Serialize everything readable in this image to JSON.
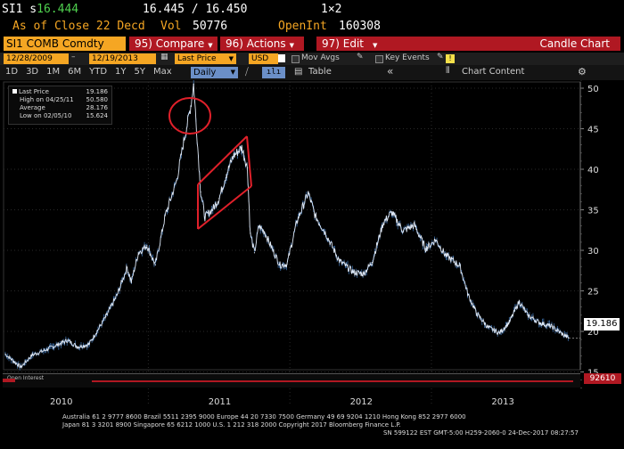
{
  "header": {
    "ticker": "SI1 s",
    "last": "16.444",
    "bidask": "16.445 / 16.450",
    "layout": "1×2",
    "asof": "As of Close 22 Decd",
    "vol_label": "Vol",
    "vol": "50776",
    "openint_label": "OpenInt",
    "openint": "160308"
  },
  "toolbar": {
    "security": "SI1 COMB Comdty",
    "compare": "95) Compare",
    "actions": "96) Actions",
    "edit": "97) Edit",
    "title": "Candle Chart"
  },
  "settings": {
    "start_date": "12/28/2009",
    "end_date": "12/19/2013",
    "field": "Last Price",
    "currency": "USD",
    "mov_avgs": "Mov Avgs",
    "key_events": "Key Events"
  },
  "periods": {
    "items": [
      "1D",
      "3D",
      "1M",
      "6M",
      "YTD",
      "1Y",
      "5Y",
      "Max"
    ],
    "frequency": "Daily",
    "table": "Table",
    "chart_content": "Chart Content"
  },
  "legend": {
    "last_label": "Last Price",
    "last_value": "19.186",
    "high_label": "High on 04/25/11",
    "high_value": "50.580",
    "avg_label": "Average",
    "avg_value": "28.176",
    "low_label": "Low on 02/05/10",
    "low_value": "15.624"
  },
  "price_tag": "19.186",
  "oi_tag": "92610",
  "oi_label": "Open Interest",
  "chart_data": {
    "type": "line",
    "ylim": [
      12,
      53
    ],
    "yticks": [
      "15",
      "20",
      "25",
      "30",
      "35",
      "40",
      "45",
      "50"
    ],
    "xticks": [
      "2010",
      "2011",
      "2012",
      "2013"
    ],
    "series": [
      {
        "values": [
          [
            2009.99,
            17.2
          ],
          [
            2010.05,
            16.3
          ],
          [
            2010.1,
            15.6
          ],
          [
            2010.18,
            17.1
          ],
          [
            2010.26,
            17.6
          ],
          [
            2010.35,
            18.3
          ],
          [
            2010.43,
            18.9
          ],
          [
            2010.5,
            18.1
          ],
          [
            2010.58,
            18.4
          ],
          [
            2010.64,
            20.1
          ],
          [
            2010.7,
            21.8
          ],
          [
            2010.78,
            24.5
          ],
          [
            2010.85,
            27.9
          ],
          [
            2010.88,
            26.1
          ],
          [
            2010.93,
            29.7
          ],
          [
            2010.99,
            30.6
          ],
          [
            2011.05,
            28.2
          ],
          [
            2011.12,
            34.3
          ],
          [
            2011.2,
            38.6
          ],
          [
            2011.25,
            43.4
          ],
          [
            2011.3,
            47.8
          ],
          [
            2011.32,
            50.5
          ],
          [
            2011.37,
            37.2
          ],
          [
            2011.4,
            34.1
          ],
          [
            2011.46,
            35.2
          ],
          [
            2011.5,
            36.4
          ],
          [
            2011.55,
            39.3
          ],
          [
            2011.6,
            41.6
          ],
          [
            2011.66,
            42.7
          ],
          [
            2011.7,
            40.2
          ],
          [
            2011.72,
            32.1
          ],
          [
            2011.75,
            29.7
          ],
          [
            2011.78,
            33.0
          ],
          [
            2011.82,
            32.3
          ],
          [
            2011.88,
            30.0
          ],
          [
            2011.93,
            28.2
          ],
          [
            2011.98,
            28.3
          ],
          [
            2012.05,
            33.6
          ],
          [
            2012.13,
            37.1
          ],
          [
            2012.18,
            34.2
          ],
          [
            2012.25,
            32.2
          ],
          [
            2012.35,
            28.7
          ],
          [
            2012.45,
            27.3
          ],
          [
            2012.52,
            27.1
          ],
          [
            2012.58,
            28.5
          ],
          [
            2012.66,
            33.4
          ],
          [
            2012.72,
            34.7
          ],
          [
            2012.8,
            32.4
          ],
          [
            2012.88,
            33.1
          ],
          [
            2012.96,
            30.2
          ],
          [
            2013.03,
            31.3
          ],
          [
            2013.1,
            29.4
          ],
          [
            2013.2,
            28.1
          ],
          [
            2013.26,
            24.5
          ],
          [
            2013.32,
            22.2
          ],
          [
            2013.4,
            20.5
          ],
          [
            2013.48,
            19.8
          ],
          [
            2013.55,
            21.1
          ],
          [
            2013.62,
            23.7
          ],
          [
            2013.68,
            22.0
          ],
          [
            2013.76,
            21.1
          ],
          [
            2013.85,
            20.6
          ],
          [
            2013.93,
            19.6
          ],
          [
            2013.97,
            19.2
          ]
        ]
      }
    ]
  },
  "footer": {
    "line1": "Australia 61 2 9777 8600 Brazil 5511 2395 9000 Europe 44 20 7330 7500 Germany 49 69 9204 1210 Hong Kong 852 2977 6000",
    "line2": "Japan 81 3 3201 8900          Singapore 65 6212 1000          U.S. 1 212 318 2000          Copyright 2017 Bloomberg Finance L.P.",
    "line3": "SN 599122 EST  GMT-5:00 H259-2060-0 24-Dec-2017 08:27:57"
  }
}
